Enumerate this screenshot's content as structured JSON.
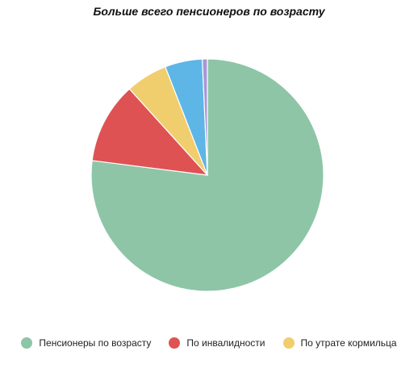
{
  "chart_data": {
    "type": "pie",
    "title": "Больше всего пенсионеров по возрасту",
    "slices": [
      {
        "label": "Пенсионеры по возрасту",
        "value": 77.0,
        "color": "#8ec5a7"
      },
      {
        "label": "По инвалидности",
        "value": 11.3,
        "color": "#df5253"
      },
      {
        "label": "По утрате кормильца",
        "value": 5.8,
        "color": "#f0ce6d"
      },
      {
        "label": "",
        "value": 5.2,
        "color": "#5db6e6"
      },
      {
        "label": "",
        "value": 0.7,
        "color": "#a896d6"
      }
    ],
    "legend_position": "bottom",
    "legend": [
      {
        "label": "Пенсионеры по возрасту",
        "color": "#8ec5a7"
      },
      {
        "label": "По инвалидности",
        "color": "#df5253"
      },
      {
        "label": "По утрате кормильца",
        "color": "#f0ce6d"
      }
    ]
  }
}
